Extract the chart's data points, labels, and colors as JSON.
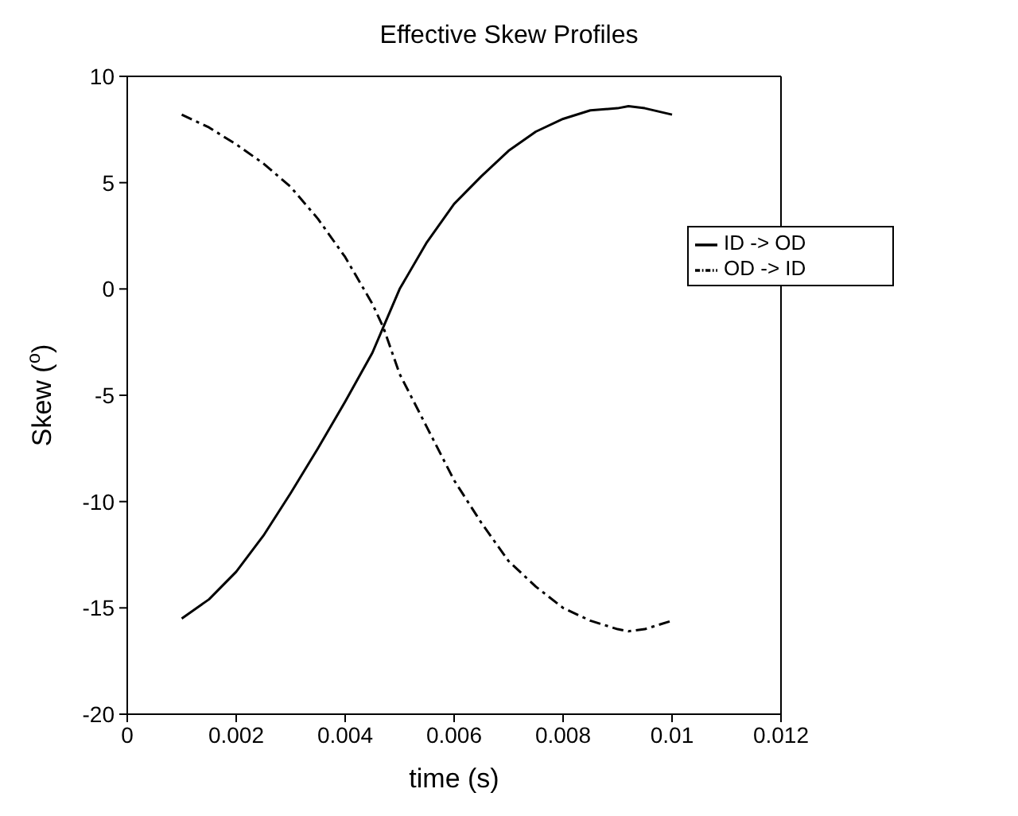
{
  "chart_data": {
    "type": "line",
    "title": "Effective Skew Profiles",
    "xlabel": "time (s)",
    "ylabel": "Skew ($^{o}$)",
    "xlim": [
      0,
      0.012
    ],
    "xticks": [
      0,
      0.002,
      0.004,
      0.006,
      0.008,
      0.01,
      0.012
    ],
    "ylim": [
      -20,
      10
    ],
    "yticks": [
      -20,
      -15,
      -10,
      -5,
      0,
      5,
      10
    ],
    "grid": false,
    "legend": "top right",
    "marker": "none",
    "x": [
      0.001,
      0.0015,
      0.002,
      0.0025,
      0.003,
      0.0035,
      0.004,
      0.0045,
      0.0047,
      0.005,
      0.0055,
      0.006,
      0.0065,
      0.007,
      0.0075,
      0.008,
      0.0085,
      0.009,
      0.0092,
      0.0095,
      0.01
    ],
    "series": [
      {
        "name": "ID -> OD",
        "color": "#000000",
        "line_style": "solid",
        "values": [
          -15.5,
          -14.6,
          -13.3,
          -11.6,
          -9.6,
          -7.5,
          -5.3,
          -3.0,
          -1.8,
          0.0,
          2.2,
          4.0,
          5.3,
          6.5,
          7.4,
          8.0,
          8.4,
          8.5,
          8.6,
          8.5,
          8.2
        ]
      },
      {
        "name": "OD -> ID",
        "color": "#000000",
        "line_style": "dashed",
        "values": [
          8.2,
          7.6,
          6.8,
          5.9,
          4.8,
          3.3,
          1.5,
          -0.7,
          -1.8,
          -4.0,
          -6.5,
          -9.0,
          -11.0,
          -12.8,
          -14.0,
          -15.0,
          -15.6,
          -16.0,
          -16.1,
          -16.0,
          -15.6
        ]
      }
    ]
  }
}
